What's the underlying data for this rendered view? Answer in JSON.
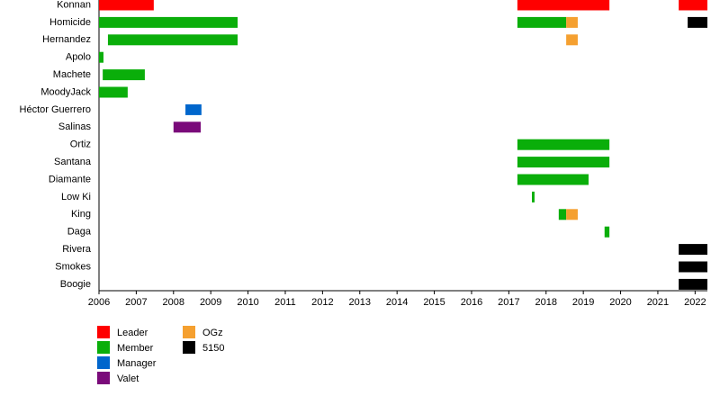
{
  "chart_data": {
    "type": "timeline",
    "categories": [
      "Konnan",
      "Homicide",
      "Hernandez",
      "Apolo",
      "Machete",
      "MoodyJack",
      "Héctor Guerrero",
      "Salinas",
      "Ortiz",
      "Santana",
      "Diamante",
      "Low Ki",
      "King",
      "Daga",
      "Rivera",
      "Smokes",
      "Boogie"
    ],
    "xlim": [
      2006,
      2022.33
    ],
    "xticks": [
      2006,
      2007,
      2008,
      2009,
      2010,
      2011,
      2012,
      2013,
      2014,
      2015,
      2016,
      2017,
      2018,
      2019,
      2020,
      2021,
      2022
    ],
    "series": [
      {
        "name": "Leader",
        "color": "#ff0000",
        "values": [
          [
            [
              2006,
              2007.47
            ],
            [
              2017.23,
              2019.7
            ],
            [
              2021.56,
              2022.33
            ]
          ],
          null,
          null,
          null,
          null,
          null,
          null,
          null,
          null,
          null,
          null,
          null,
          null,
          null,
          null,
          null,
          null
        ]
      },
      {
        "name": "Member",
        "color": "#0aae0a",
        "values": [
          null,
          [
            [
              2006,
              2009.72
            ],
            [
              2017.23,
              2018.54
            ]
          ],
          [
            [
              2006.24,
              2009.72
            ]
          ],
          [
            [
              2006,
              2006.12
            ]
          ],
          [
            [
              2006.1,
              2007.23
            ]
          ],
          [
            [
              2006,
              2006.77
            ]
          ],
          null,
          null,
          [
            [
              2017.23,
              2019.7
            ]
          ],
          [
            [
              2017.23,
              2019.7
            ]
          ],
          [
            [
              2017.23,
              2019.14
            ]
          ],
          [
            [
              2017.62,
              2017.69
            ]
          ],
          [
            [
              2018.34,
              2018.54
            ]
          ],
          [
            [
              2019.57,
              2019.7
            ]
          ],
          null,
          null,
          null
        ]
      },
      {
        "name": "Manager",
        "color": "#0066cc",
        "values": [
          null,
          null,
          null,
          null,
          null,
          null,
          [
            [
              2008.32,
              2008.75
            ]
          ],
          null,
          null,
          null,
          null,
          null,
          null,
          null,
          null,
          null,
          null
        ]
      },
      {
        "name": "Valet",
        "color": "#7a0a7a",
        "values": [
          null,
          null,
          null,
          null,
          null,
          null,
          null,
          [
            [
              2008.0,
              2008.73
            ]
          ],
          null,
          null,
          null,
          null,
          null,
          null,
          null,
          null,
          null
        ]
      },
      {
        "name": "OGz",
        "color": "#f5a030",
        "values": [
          null,
          [
            [
              2018.54,
              2018.85
            ]
          ],
          [
            [
              2018.54,
              2018.85
            ]
          ],
          null,
          null,
          null,
          null,
          null,
          null,
          null,
          null,
          null,
          [
            [
              2018.54,
              2018.85
            ]
          ],
          null,
          null,
          null,
          null
        ]
      },
      {
        "name": "5150",
        "color": "#000000",
        "values": [
          null,
          [
            [
              2021.8,
              2022.33
            ]
          ],
          null,
          null,
          null,
          null,
          null,
          null,
          null,
          null,
          null,
          null,
          null,
          null,
          [
            [
              2021.56,
              2022.33
            ]
          ],
          [
            [
              2021.56,
              2022.33
            ]
          ],
          [
            [
              2021.56,
              2022.33
            ]
          ]
        ]
      }
    ]
  }
}
